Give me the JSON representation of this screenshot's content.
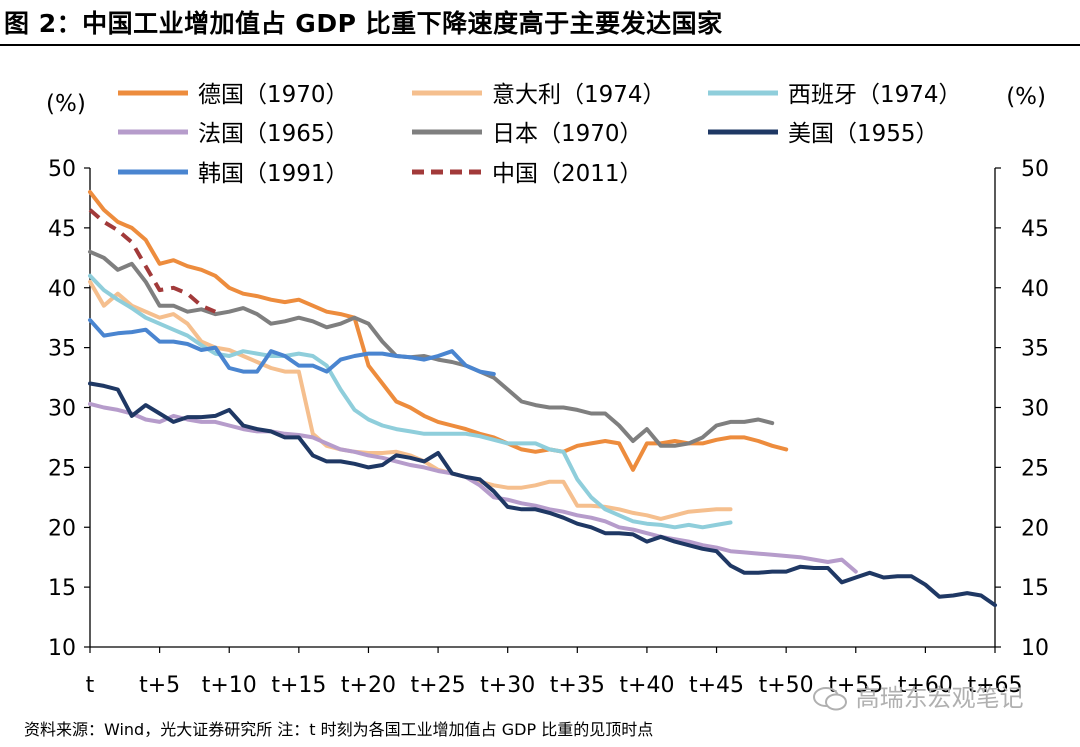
{
  "title": "图 2：中国工业增加值占 GDP 比重下降速度高于主要发达国家",
  "source": "资料来源：Wind，光大证券研究所  注：t 时刻为各国工业增加值占 GDP 比重的见顶时点",
  "watermark": "高瑞东宏观笔记",
  "chart_data": {
    "type": "line",
    "ylabel_left": "(%)",
    "ylabel_right": "(%)",
    "ylim": [
      10,
      50
    ],
    "yticks": [
      10,
      15,
      20,
      25,
      30,
      35,
      40,
      45,
      50
    ],
    "xlim": [
      0,
      65
    ],
    "xtick_values": [
      0,
      5,
      10,
      15,
      20,
      25,
      30,
      35,
      40,
      45,
      50,
      55,
      60,
      65
    ],
    "xtick_labels": [
      "t",
      "t+5",
      "t+10",
      "t+15",
      "t+20",
      "t+25",
      "t+30",
      "t+35",
      "t+40",
      "t+45",
      "t+50",
      "t+55",
      "t+60",
      "t+65"
    ],
    "legend_position": "top",
    "series": [
      {
        "name": "德国（1970）",
        "color": "#ED8C3D",
        "dash": false,
        "x": [
          0,
          1,
          2,
          3,
          4,
          5,
          6,
          7,
          8,
          9,
          10,
          11,
          12,
          13,
          14,
          15,
          16,
          17,
          18,
          19,
          20,
          21,
          22,
          23,
          24,
          25,
          26,
          27,
          28,
          29,
          30,
          31,
          32,
          33,
          34,
          35,
          36,
          37,
          38,
          39,
          40,
          41,
          42,
          43,
          44,
          45,
          46,
          47,
          48,
          49,
          50
        ],
        "y": [
          48,
          46.5,
          45.5,
          45,
          44,
          42,
          42.3,
          41.8,
          41.5,
          41,
          40,
          39.5,
          39.3,
          39,
          38.8,
          39,
          38.5,
          38,
          37.8,
          37.5,
          33.5,
          32,
          30.5,
          30,
          29.3,
          28.8,
          28.5,
          28.2,
          27.8,
          27.5,
          27,
          26.5,
          26.3,
          26.5,
          26.3,
          26.8,
          27,
          27.2,
          27,
          24.8,
          27,
          27,
          27.2,
          27,
          27,
          27.3,
          27.5,
          27.5,
          27.2,
          26.8,
          26.5
        ]
      },
      {
        "name": "意大利（1974）",
        "color": "#F5BF8E",
        "dash": false,
        "x": [
          0,
          1,
          2,
          3,
          4,
          5,
          6,
          7,
          8,
          9,
          10,
          11,
          12,
          13,
          14,
          15,
          16,
          17,
          18,
          19,
          20,
          21,
          22,
          23,
          24,
          25,
          26,
          27,
          28,
          29,
          30,
          31,
          32,
          33,
          34,
          35,
          36,
          37,
          38,
          39,
          40,
          41,
          42,
          43,
          44,
          45,
          46
        ],
        "y": [
          40.5,
          38.5,
          39.5,
          38.5,
          38,
          37.5,
          37.8,
          37,
          35.5,
          35,
          34.8,
          34.3,
          33.8,
          33.3,
          33,
          33,
          27.8,
          26.8,
          26.5,
          26.3,
          26.2,
          26.2,
          26.3,
          26,
          25.5,
          24.8,
          24.5,
          24.2,
          23.8,
          23.5,
          23.3,
          23.3,
          23.5,
          23.8,
          23.8,
          21.8,
          21.8,
          21.7,
          21.5,
          21.2,
          21,
          20.7,
          21,
          21.3,
          21.4,
          21.5,
          21.5
        ]
      },
      {
        "name": "西班牙（1974）",
        "color": "#8FCEDB",
        "dash": false,
        "x": [
          0,
          1,
          2,
          3,
          4,
          5,
          6,
          7,
          8,
          9,
          10,
          11,
          12,
          13,
          14,
          15,
          16,
          17,
          18,
          19,
          20,
          21,
          22,
          23,
          24,
          25,
          26,
          27,
          28,
          29,
          30,
          31,
          32,
          33,
          34,
          35,
          36,
          37,
          38,
          39,
          40,
          41,
          42,
          43,
          44,
          45,
          46
        ],
        "y": [
          41,
          39.8,
          39,
          38.3,
          37.5,
          37,
          36.5,
          36,
          35.2,
          34.5,
          34.3,
          34.7,
          34.5,
          34.3,
          34.3,
          34.5,
          34.3,
          33.5,
          31.5,
          29.8,
          29,
          28.5,
          28.2,
          28,
          27.8,
          27.8,
          27.8,
          27.8,
          27.6,
          27.3,
          27,
          27,
          27,
          26.5,
          26.3,
          24,
          22.5,
          21.5,
          21,
          20.5,
          20.3,
          20.2,
          20,
          20.2,
          20,
          20.2,
          20.4
        ]
      },
      {
        "name": "法国（1965）",
        "color": "#B69CCB",
        "dash": false,
        "x": [
          0,
          1,
          2,
          3,
          4,
          5,
          6,
          7,
          8,
          9,
          10,
          11,
          12,
          13,
          14,
          15,
          16,
          17,
          18,
          19,
          20,
          21,
          22,
          23,
          24,
          25,
          26,
          27,
          28,
          29,
          30,
          31,
          32,
          33,
          34,
          35,
          36,
          37,
          38,
          39,
          40,
          41,
          42,
          43,
          44,
          45,
          46,
          47,
          48,
          49,
          50,
          51,
          52,
          53,
          54,
          55
        ],
        "y": [
          30.3,
          30,
          29.8,
          29.5,
          29,
          28.8,
          29.3,
          29,
          28.8,
          28.8,
          28.5,
          28.2,
          28,
          28,
          27.8,
          27.7,
          27.5,
          27,
          26.5,
          26.3,
          26,
          25.8,
          25.5,
          25.2,
          25,
          24.7,
          24.5,
          24.2,
          23.5,
          22.5,
          22.3,
          22,
          21.8,
          21.5,
          21.3,
          21,
          20.8,
          20.5,
          20,
          19.8,
          19.5,
          19.2,
          19,
          18.8,
          18.5,
          18.3,
          18,
          17.9,
          17.8,
          17.7,
          17.6,
          17.5,
          17.3,
          17.1,
          17.3,
          16.3
        ]
      },
      {
        "name": "日本（1970）",
        "color": "#7F7F7F",
        "dash": false,
        "x": [
          0,
          1,
          2,
          3,
          4,
          5,
          6,
          7,
          8,
          9,
          10,
          11,
          12,
          13,
          14,
          15,
          16,
          17,
          18,
          19,
          20,
          21,
          22,
          23,
          24,
          25,
          26,
          27,
          28,
          29,
          30,
          31,
          32,
          33,
          34,
          35,
          36,
          37,
          38,
          39,
          40,
          41,
          42,
          43,
          44,
          45,
          46,
          47,
          48,
          49
        ],
        "y": [
          43,
          42.5,
          41.5,
          42,
          40.5,
          38.5,
          38.5,
          38,
          38.2,
          37.8,
          38,
          38.3,
          37.8,
          37,
          37.2,
          37.5,
          37.2,
          36.7,
          37,
          37.5,
          37,
          35.5,
          34.3,
          34.2,
          34.3,
          34,
          33.8,
          33.5,
          33,
          32.5,
          31.5,
          30.5,
          30.2,
          30,
          30,
          29.8,
          29.5,
          29.5,
          28.5,
          27.2,
          28.2,
          26.8,
          26.8,
          27,
          27.5,
          28.5,
          28.8,
          28.8,
          29,
          28.7
        ]
      },
      {
        "name": "美国（1955）",
        "color": "#1F3864",
        "dash": false,
        "x": [
          0,
          1,
          2,
          3,
          4,
          5,
          6,
          7,
          8,
          9,
          10,
          11,
          12,
          13,
          14,
          15,
          16,
          17,
          18,
          19,
          20,
          21,
          22,
          23,
          24,
          25,
          26,
          27,
          28,
          29,
          30,
          31,
          32,
          33,
          34,
          35,
          36,
          37,
          38,
          39,
          40,
          41,
          42,
          43,
          44,
          45,
          46,
          47,
          48,
          49,
          50,
          51,
          52,
          53,
          54,
          55,
          56,
          57,
          58,
          59,
          60,
          61,
          62,
          63,
          64,
          65
        ],
        "y": [
          32,
          31.8,
          31.5,
          29.3,
          30.2,
          29.5,
          28.8,
          29.2,
          29.2,
          29.3,
          29.8,
          28.5,
          28.2,
          28,
          27.5,
          27.5,
          26,
          25.5,
          25.5,
          25.3,
          25,
          25.2,
          26,
          25.8,
          25.5,
          26.2,
          24.5,
          24.2,
          24,
          23,
          21.7,
          21.5,
          21.5,
          21.2,
          20.8,
          20.3,
          20,
          19.5,
          19.5,
          19.4,
          18.8,
          19.2,
          18.8,
          18.5,
          18.2,
          18,
          16.8,
          16.2,
          16.2,
          16.3,
          16.3,
          16.7,
          16.6,
          16.6,
          15.4,
          15.8,
          16.2,
          15.8,
          15.9,
          15.9,
          15.2,
          14.2,
          14.3,
          14.5,
          14.3,
          13.5
        ]
      },
      {
        "name": "韩国（1991）",
        "color": "#4A85D0",
        "dash": false,
        "x": [
          0,
          1,
          2,
          3,
          4,
          5,
          6,
          7,
          8,
          9,
          10,
          11,
          12,
          13,
          14,
          15,
          16,
          17,
          18,
          19,
          20,
          21,
          22,
          23,
          24,
          25,
          26,
          27,
          28,
          29
        ],
        "y": [
          37.3,
          36,
          36.2,
          36.3,
          36.5,
          35.5,
          35.5,
          35.3,
          34.8,
          35,
          33.3,
          33,
          33,
          34.7,
          34.3,
          33.5,
          33.5,
          33,
          34,
          34.3,
          34.5,
          34.5,
          34.3,
          34.2,
          34,
          34.3,
          34.7,
          33.5,
          33,
          32.8
        ]
      },
      {
        "name": "中国（2011）",
        "color": "#A23A3A",
        "dash": true,
        "x": [
          0,
          1,
          2,
          3,
          4,
          5,
          6,
          7,
          8,
          9
        ],
        "y": [
          46.5,
          45.5,
          44.8,
          43.8,
          41.8,
          39.8,
          40,
          39.5,
          38.5,
          38
        ]
      }
    ]
  }
}
